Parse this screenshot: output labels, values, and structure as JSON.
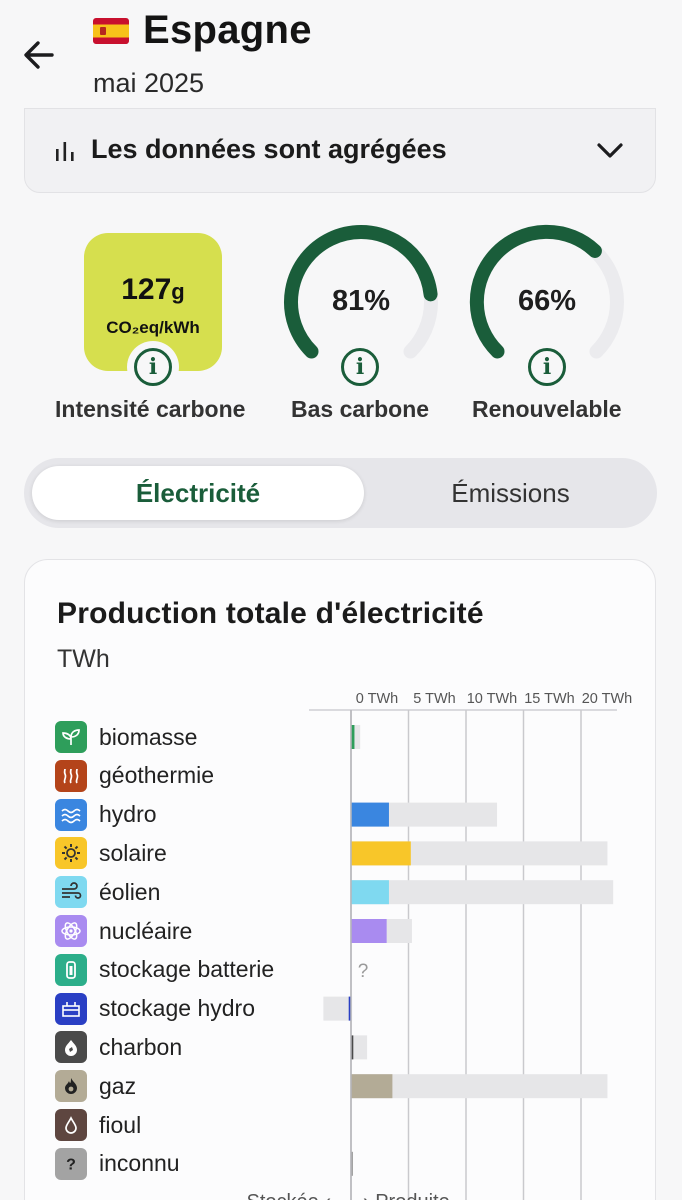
{
  "header": {
    "back_icon": "arrow-left-icon",
    "flag_icon": "spain-flag-icon",
    "title": "Espagne",
    "subtitle": "mai 2025"
  },
  "aggregate": {
    "icon": "bar-chart-icon",
    "label": "Les données sont agrégées",
    "chevron": "chevron-down-icon"
  },
  "metrics": {
    "carbon_intensity": {
      "value": "127",
      "unit_g": "g",
      "unit_line": "CO₂eq/kWh",
      "label": "Intensité carbone",
      "color": "#d6df4e"
    },
    "low_carbon": {
      "value_text": "81%",
      "value": 0.81,
      "label": "Bas carbone"
    },
    "renewable": {
      "value_text": "66%",
      "value": 0.66,
      "label": "Renouvelable"
    },
    "gauge_color": "#1a5d3a",
    "gauge_track_color": "#ebebee",
    "info_icon": "info-icon"
  },
  "tabs": [
    {
      "label": "Électricité",
      "active": true
    },
    {
      "label": "Émissions",
      "active": false
    }
  ],
  "card": {
    "title": "Production totale d'électricité",
    "unit": "TWh"
  },
  "chart_data": {
    "type": "bar",
    "axis_ticks": [
      "0 TWh",
      "5 TWh",
      "10 TWh",
      "15 TWh",
      "20 TWh"
    ],
    "xlim": [
      -2.5,
      23
    ],
    "grid": true,
    "footer_left": "Stockée",
    "footer_right": "Produite",
    "unknown_marker": "?",
    "categories": [
      {
        "label": "biomasse",
        "icon": "sprout-icon",
        "color": "#2e9e5b",
        "value": 0.3,
        "capacity": 0.8
      },
      {
        "label": "géothermie",
        "icon": "heat-waves-icon",
        "color": "#b4441a",
        "value": 0,
        "capacity": 0
      },
      {
        "label": "hydro",
        "icon": "water-waves-icon",
        "color": "#3a86e0",
        "value": 3.3,
        "capacity": 12.7
      },
      {
        "label": "solaire",
        "icon": "sun-gear-icon",
        "color": "#f8c629",
        "value": 5.2,
        "capacity": 22.3
      },
      {
        "label": "éolien",
        "icon": "wind-icon",
        "color": "#7fd9f0",
        "value": 3.3,
        "capacity": 22.8
      },
      {
        "label": "nucléaire",
        "icon": "atom-icon",
        "color": "#a98bf0",
        "value": 3.1,
        "capacity": 5.3
      },
      {
        "label": "stockage batterie",
        "icon": "battery-icon",
        "color": "#2cae8a",
        "value": null,
        "capacity": null
      },
      {
        "label": "stockage hydro",
        "icon": "pumped-storage-icon",
        "color": "#2a3fc4",
        "value": -0.2,
        "capacity": -2.4,
        "capacity_pos": 2.5
      },
      {
        "label": "charbon",
        "icon": "coal-icon",
        "color": "#4a4a4a",
        "value": 0.2,
        "capacity": 1.4
      },
      {
        "label": "gaz",
        "icon": "gas-flame-icon",
        "color": "#b3ab96",
        "value": 3.6,
        "capacity": 22.3
      },
      {
        "label": "fioul",
        "icon": "oil-drop-icon",
        "color": "#5e4640",
        "value": 0,
        "capacity": 0
      },
      {
        "label": "inconnu",
        "icon": "question-icon",
        "color": "#a3a3a3",
        "value": 0.1,
        "capacity": 0.1
      }
    ]
  }
}
